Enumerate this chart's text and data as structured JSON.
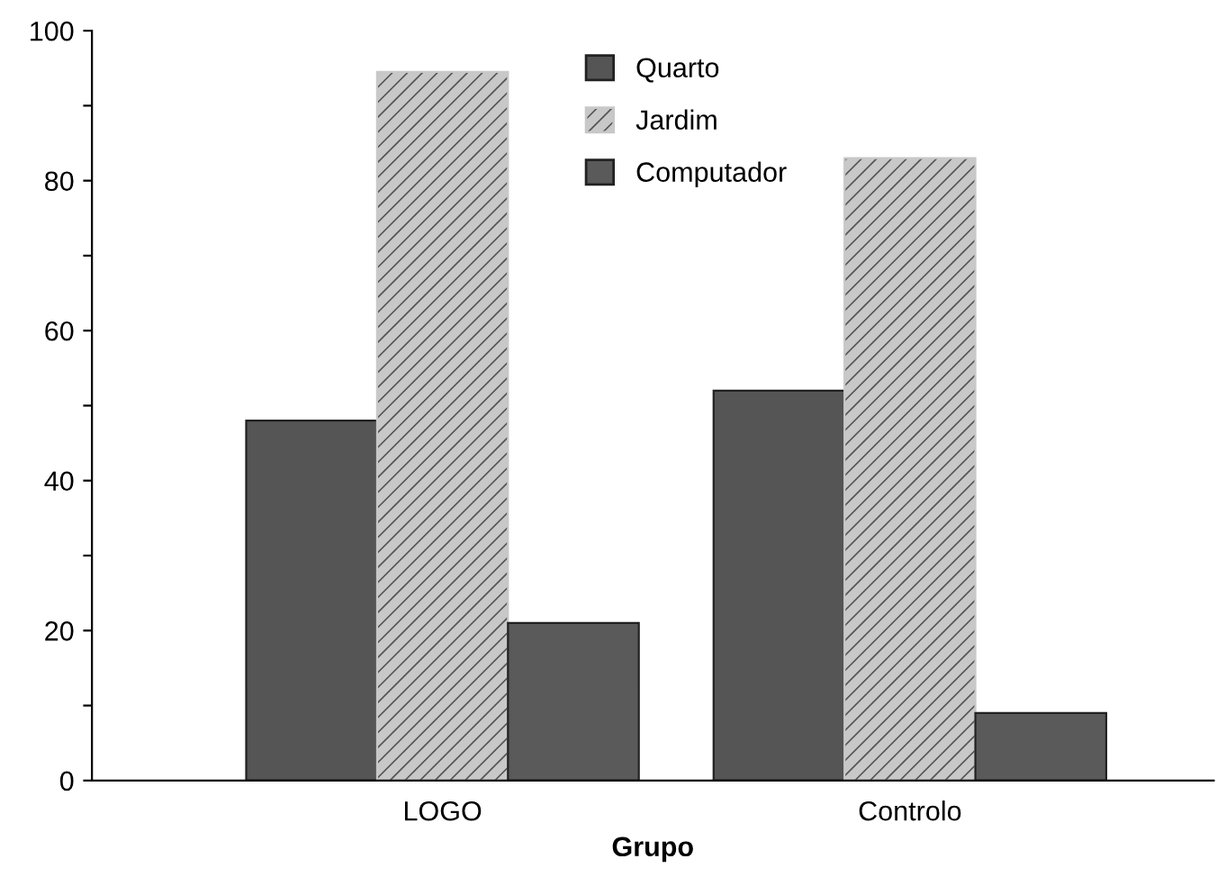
{
  "chart_data": {
    "type": "bar",
    "xlabel": "Grupo",
    "categories": [
      "LOGO",
      "Controlo"
    ],
    "series": [
      {
        "name": "Quarto",
        "color": "#555555",
        "values": [
          48,
          52
        ]
      },
      {
        "name": "Jardim",
        "color": "#c8c8c8",
        "values": [
          94.5,
          83
        ]
      },
      {
        "name": "Computador",
        "color": "#5a5a5a",
        "values": [
          21,
          9
        ]
      }
    ],
    "ylim": [
      0,
      100
    ],
    "yticks": [
      0,
      {
        "value": 10,
        "label": null
      },
      20,
      {
        "value": 30,
        "label": null
      },
      40,
      {
        "value": 50,
        "label": null
      },
      60,
      {
        "value": 70,
        "label": null
      },
      80,
      {
        "value": 90,
        "label": null
      },
      100
    ],
    "grid": false,
    "legend": "top"
  }
}
